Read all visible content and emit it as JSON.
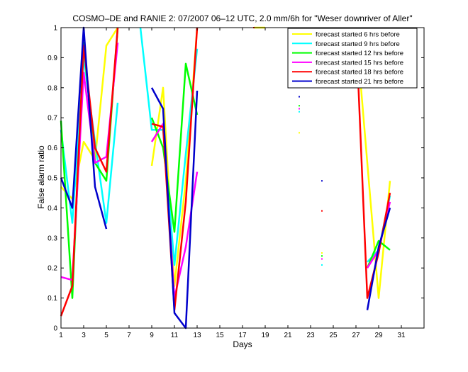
{
  "chart_data": {
    "type": "line",
    "title": "COSMO–DE and RANIE 2: 07/2007 06–12 UTC, 2.0 mm/6h for \"Weser downriver of Aller\"",
    "xlabel": "Days",
    "ylabel": "False alarm ratio",
    "xlim": [
      1,
      33
    ],
    "ylim": [
      0,
      1
    ],
    "xticks": [
      1,
      3,
      5,
      7,
      9,
      11,
      13,
      15,
      17,
      19,
      21,
      23,
      25,
      27,
      29,
      31
    ],
    "yticks": [
      0,
      0.1,
      0.2,
      0.3,
      0.4,
      0.5,
      0.6,
      0.7,
      0.8,
      0.9,
      1
    ],
    "legend_position": "top-right",
    "grid": false,
    "series": [
      {
        "name": "forecast started  6 hrs before",
        "color": "#ffff00",
        "values": [
          [
            1,
            0.47
          ],
          [
            2,
            0.43
          ],
          [
            3,
            0.62
          ],
          [
            4,
            0.56
          ],
          [
            5,
            0.94
          ],
          [
            6,
            1.0
          ],
          null,
          [
            9,
            0.54
          ],
          [
            10,
            0.8
          ],
          [
            11,
            0.14
          ],
          [
            12,
            0.49
          ],
          [
            13,
            1.0
          ],
          null,
          [
            18,
            1.0
          ],
          [
            19,
            1.0
          ],
          null,
          [
            22,
            0.65
          ],
          null,
          [
            24,
            0.25
          ],
          null,
          [
            27,
            1.0
          ],
          [
            28,
            0.55
          ],
          [
            29,
            0.1
          ],
          [
            30,
            0.49
          ]
        ]
      },
      {
        "name": "forecast started  9 hrs before",
        "color": "#00ffff",
        "values": [
          [
            1,
            0.66
          ],
          [
            2,
            0.35
          ],
          [
            3,
            0.9
          ],
          [
            4,
            0.62
          ],
          [
            5,
            0.35
          ],
          [
            6,
            0.75
          ],
          null,
          [
            8,
            1.0
          ],
          [
            9,
            0.66
          ],
          [
            10,
            0.66
          ],
          [
            11,
            0.21
          ],
          [
            12,
            0.58
          ],
          [
            13,
            0.93
          ],
          null,
          [
            22,
            0.72
          ],
          null,
          [
            24,
            0.21
          ],
          null,
          [
            28,
            0.22
          ],
          [
            29,
            0.26
          ],
          [
            30,
            0.44
          ]
        ]
      },
      {
        "name": "forecast started 12 hrs before",
        "color": "#00ff00",
        "values": [
          [
            1,
            0.69
          ],
          [
            2,
            0.1
          ],
          [
            3,
            0.95
          ],
          [
            4,
            0.55
          ],
          [
            5,
            0.49
          ],
          [
            6,
            1.0
          ],
          null,
          [
            9,
            0.7
          ],
          [
            10,
            0.6
          ],
          [
            11,
            0.32
          ],
          [
            12,
            0.88
          ],
          [
            13,
            0.71
          ],
          null,
          [
            22,
            0.74
          ],
          null,
          [
            24,
            0.24
          ],
          null,
          [
            28,
            0.2
          ],
          [
            29,
            0.29
          ],
          [
            30,
            0.26
          ]
        ]
      },
      {
        "name": "forecast started 15 hrs before",
        "color": "#ff00ff",
        "values": [
          [
            1,
            0.17
          ],
          [
            2,
            0.16
          ],
          [
            3,
            0.85
          ],
          [
            4,
            0.55
          ],
          [
            5,
            0.57
          ],
          [
            6,
            0.95
          ],
          null,
          [
            9,
            0.62
          ],
          [
            10,
            0.68
          ],
          [
            11,
            0.1
          ],
          [
            12,
            0.27
          ],
          [
            13,
            0.52
          ],
          null,
          [
            22,
            0.73
          ],
          null,
          [
            24,
            0.23
          ],
          null,
          [
            28,
            0.2
          ],
          [
            29,
            0.26
          ],
          [
            30,
            0.42
          ]
        ]
      },
      {
        "name": "forecast started 18 hrs before",
        "color": "#ff0000",
        "values": [
          [
            1,
            0.04
          ],
          [
            2,
            0.14
          ],
          [
            3,
            0.94
          ],
          [
            4,
            0.6
          ],
          [
            5,
            0.52
          ],
          [
            6,
            1.0
          ],
          null,
          [
            9,
            0.68
          ],
          [
            10,
            0.67
          ],
          [
            11,
            0.06
          ],
          [
            12,
            0.42
          ],
          [
            13,
            1.0
          ],
          null,
          [
            18,
            1.0
          ],
          null,
          [
            24,
            0.39
          ],
          null,
          [
            27,
            1.0
          ],
          [
            28,
            0.1
          ],
          [
            29,
            0.25
          ],
          [
            30,
            0.45
          ]
        ]
      },
      {
        "name": "forecast started 21 hrs before",
        "color": "#0000cc",
        "values": [
          [
            1,
            0.5
          ],
          [
            2,
            0.4
          ],
          [
            3,
            1.0
          ],
          [
            4,
            0.47
          ],
          [
            5,
            0.33
          ],
          null,
          [
            9,
            0.8
          ],
          [
            10,
            0.73
          ],
          [
            11,
            0.05
          ],
          [
            12,
            0.0
          ],
          [
            13,
            0.79
          ],
          null,
          [
            22,
            0.77
          ],
          null,
          [
            24,
            0.49
          ],
          null,
          [
            28,
            0.06
          ],
          [
            29,
            0.27
          ],
          [
            30,
            0.4
          ]
        ]
      }
    ]
  }
}
